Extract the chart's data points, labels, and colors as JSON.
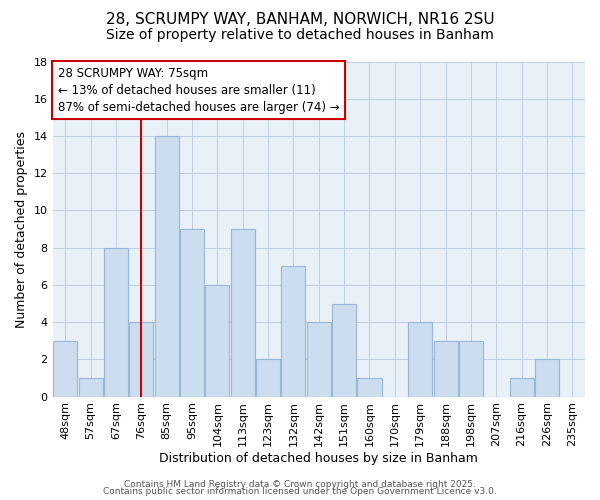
{
  "title": "28, SCRUMPY WAY, BANHAM, NORWICH, NR16 2SU",
  "subtitle": "Size of property relative to detached houses in Banham",
  "xlabel": "Distribution of detached houses by size in Banham",
  "ylabel": "Number of detached properties",
  "categories": [
    "48sqm",
    "57sqm",
    "67sqm",
    "76sqm",
    "85sqm",
    "95sqm",
    "104sqm",
    "113sqm",
    "123sqm",
    "132sqm",
    "142sqm",
    "151sqm",
    "160sqm",
    "170sqm",
    "179sqm",
    "188sqm",
    "198sqm",
    "207sqm",
    "216sqm",
    "226sqm",
    "235sqm"
  ],
  "values": [
    3,
    1,
    8,
    4,
    14,
    9,
    6,
    9,
    2,
    7,
    4,
    5,
    1,
    0,
    4,
    3,
    3,
    0,
    1,
    2,
    0
  ],
  "bar_color": "#ccddf0",
  "bar_edge_color": "#99b8d8",
  "vline_color": "#cc0000",
  "annotation_line1": "28 SCRUMPY WAY: 75sqm",
  "annotation_line2": "← 13% of detached houses are smaller (11)",
  "annotation_line3": "87% of semi-detached houses are larger (74) →",
  "annotation_box_color": "#ffffff",
  "annotation_box_edge_color": "#cc0000",
  "ylim": [
    0,
    18
  ],
  "yticks": [
    0,
    2,
    4,
    6,
    8,
    10,
    12,
    14,
    16,
    18
  ],
  "footer1": "Contains HM Land Registry data © Crown copyright and database right 2025.",
  "footer2": "Contains public sector information licensed under the Open Government Licence v3.0.",
  "background_color": "#ffffff",
  "plot_bg_color": "#e8f0f8",
  "grid_color": "#c0d0e0",
  "title_fontsize": 11,
  "subtitle_fontsize": 10,
  "axis_label_fontsize": 9,
  "tick_fontsize": 8,
  "annotation_fontsize": 8.5,
  "footer_fontsize": 6.5,
  "vline_index": 3
}
